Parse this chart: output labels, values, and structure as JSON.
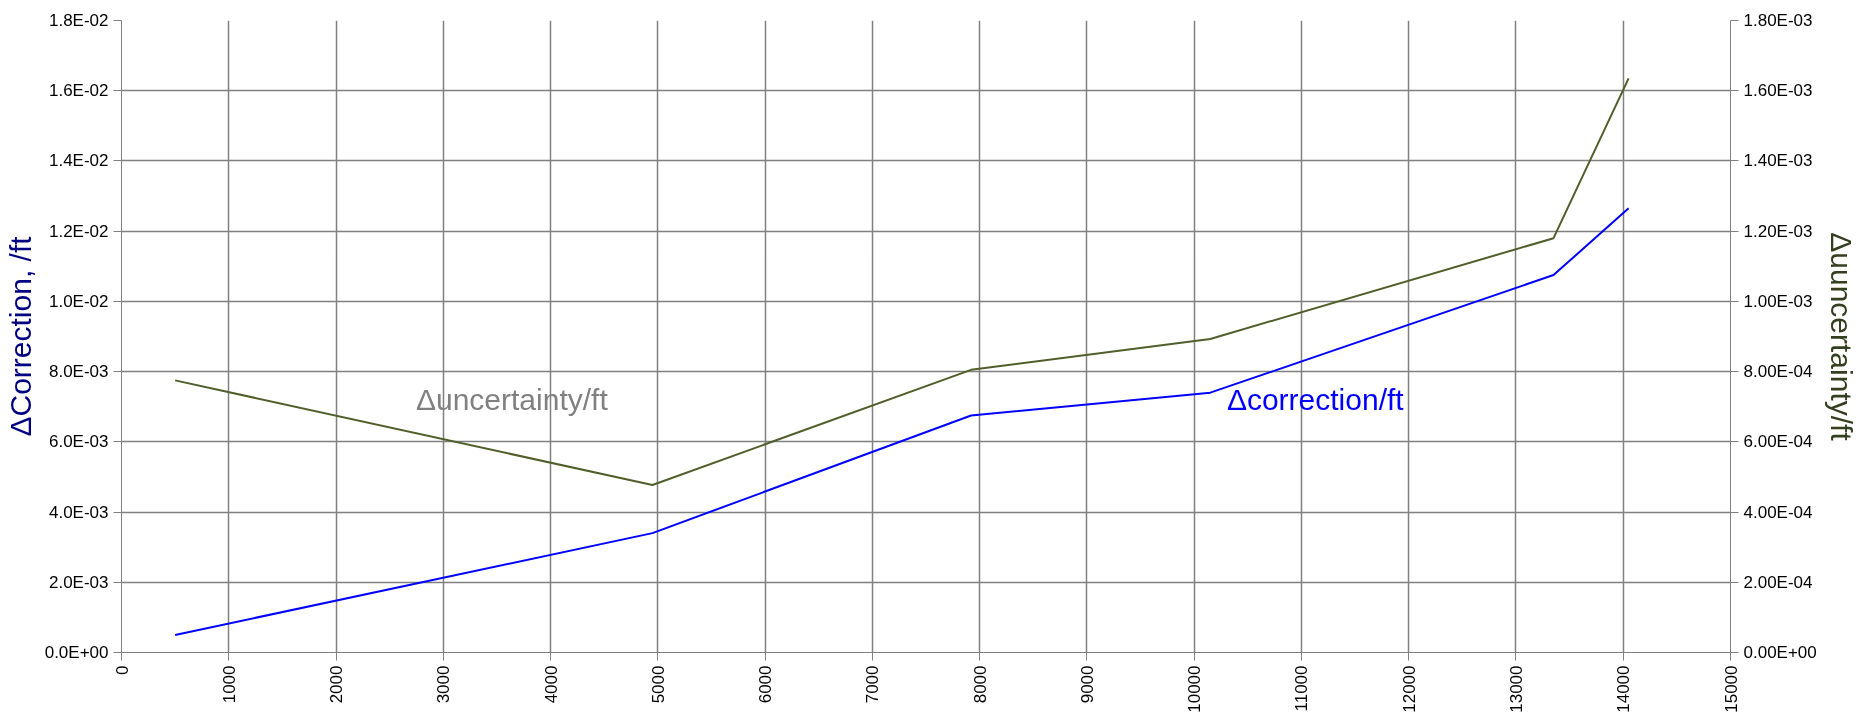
{
  "chart_data": {
    "type": "line",
    "ylabel": "ΔCorrection, /ft",
    "y2label": "Δuuncertainty/ft",
    "xlim": [
      0,
      15000
    ],
    "xticks": [
      0,
      1000,
      2000,
      3000,
      4000,
      5000,
      6000,
      7000,
      8000,
      9000,
      10000,
      11000,
      12000,
      13000,
      14000,
      15000
    ],
    "ylim": [
      0,
      0.018
    ],
    "yticks": [
      {
        "value": 0,
        "label": "0.0E+00"
      },
      {
        "value": 0.002,
        "label": "2.0E-03"
      },
      {
        "value": 0.004,
        "label": "4.0E-03"
      },
      {
        "value": 0.006,
        "label": "6.0E-03"
      },
      {
        "value": 0.008,
        "label": "8.0E-03"
      },
      {
        "value": 0.01,
        "label": "1.0E-02"
      },
      {
        "value": 0.012,
        "label": "1.2E-02"
      },
      {
        "value": 0.014,
        "label": "1.4E-02"
      },
      {
        "value": 0.016,
        "label": "1.6E-02"
      },
      {
        "value": 0.018,
        "label": "1.8E-02"
      }
    ],
    "y2lim": [
      0,
      0.0018
    ],
    "y2ticks": [
      {
        "value": 0,
        "label": "0.00E+00"
      },
      {
        "value": 0.0002,
        "label": "2.00E-04"
      },
      {
        "value": 0.0004,
        "label": "4.00E-04"
      },
      {
        "value": 0.0006,
        "label": "6.00E-04"
      },
      {
        "value": 0.0008,
        "label": "8.00E-04"
      },
      {
        "value": 0.001,
        "label": "1.00E-03"
      },
      {
        "value": 0.0012,
        "label": "1.20E-03"
      },
      {
        "value": 0.0014,
        "label": "1.40E-03"
      },
      {
        "value": 0.0016,
        "label": "1.60E-03"
      },
      {
        "value": 0.0018,
        "label": "1.80E-03"
      }
    ],
    "grid": true,
    "marker": "none",
    "line_style": "solid",
    "series": [
      {
        "name": "Δcorrection/ft",
        "color": "#0000ff",
        "x": [
          500,
          4950,
          7920,
          10150,
          13350,
          14050
        ],
        "values": [
          0.0005,
          0.0034,
          0.00675,
          0.0074,
          0.01075,
          0.01265
        ]
      },
      {
        "name": "Δuncertainty/ft",
        "color": "#4f5f2a",
        "axis": "y2",
        "x": [
          500,
          4950,
          7920,
          10150,
          13350,
          14050
        ],
        "values": [
          0.000775,
          0.000477,
          0.000805,
          0.000893,
          0.00118,
          0.001635
        ]
      }
    ]
  }
}
